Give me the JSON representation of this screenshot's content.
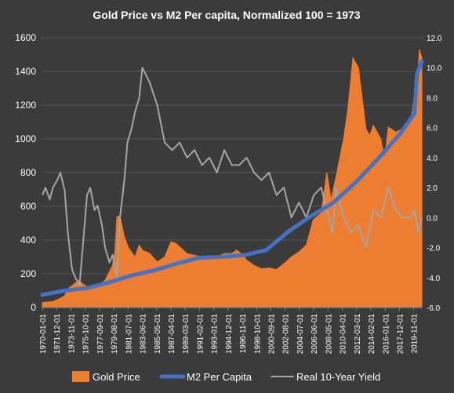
{
  "chart_data": {
    "type": "area",
    "title": "Gold Price vs M2 Per capita, Normalized 100 = 1973",
    "xlabel": "",
    "ylabel": "",
    "y_left_lim": [
      0,
      1600
    ],
    "y_left_ticks": [
      "0",
      "200",
      "400",
      "600",
      "800",
      "1000",
      "1200",
      "1400",
      "1600"
    ],
    "y_right_lim": [
      -6.0,
      12.0
    ],
    "y_right_ticks": [
      "-6.0",
      "-4.0",
      "-2.0",
      "0.0",
      "2.0",
      "4.0",
      "6.0",
      "8.0",
      "10.0",
      "12.0"
    ],
    "x_range": [
      "1970-01",
      "2020-12"
    ],
    "x_tick_labels": [
      "1970-01-01",
      "1971-12-01",
      "1973-11-01",
      "1975-10-01",
      "1977-09-01",
      "1979-08-01",
      "1981-07-01",
      "1983-06-01",
      "1985-05-01",
      "1987-04-01",
      "1989-03-01",
      "1991-02-01",
      "1993-01-01",
      "1994-12-01",
      "1996-11-01",
      "1998-10-01",
      "2000-09-01",
      "2002-08-01",
      "2004-07-01",
      "2006-06-01",
      "2008-05-01",
      "2010-04-01",
      "2012-03-01",
      "2014-02-01",
      "2016-01-01",
      "2017-12-01",
      "2019-11-01"
    ],
    "grid": true,
    "legend_position": "bottom",
    "colors": {
      "gold": "#ed7d31",
      "m2": "#4472c4",
      "yield": "#a5a5a5",
      "background": "#3b3b3b",
      "grid": "#555555"
    },
    "series": [
      {
        "name": "Gold Price",
        "axis": "left",
        "type": "area",
        "x": [
          "1970-01",
          "1971-06",
          "1972-06",
          "1973-01",
          "1973-06",
          "1974-06",
          "1974-12",
          "1975-06",
          "1976-06",
          "1977-06",
          "1978-06",
          "1979-06",
          "1979-10",
          "1980-01",
          "1980-06",
          "1981-01",
          "1981-07",
          "1982-06",
          "1983-01",
          "1983-06",
          "1984-06",
          "1985-06",
          "1986-06",
          "1987-04",
          "1987-12",
          "1988-06",
          "1989-06",
          "1990-06",
          "1991-06",
          "1992-06",
          "1993-06",
          "1994-06",
          "1995-06",
          "1996-02",
          "1996-12",
          "1997-06",
          "1998-06",
          "1999-06",
          "2000-06",
          "2001-06",
          "2002-06",
          "2003-06",
          "2004-06",
          "2005-06",
          "2006-05",
          "2007-06",
          "2008-03",
          "2008-10",
          "2009-06",
          "2010-06",
          "2011-01",
          "2011-09",
          "2012-06",
          "2013-06",
          "2013-12",
          "2014-06",
          "2015-06",
          "2015-12",
          "2016-06",
          "2017-06",
          "2018-06",
          "2019-06",
          "2019-12",
          "2020-03",
          "2020-08",
          "2020-12"
        ],
        "values": [
          30,
          35,
          55,
          70,
          110,
          145,
          160,
          140,
          110,
          130,
          160,
          250,
          340,
          540,
          540,
          420,
          360,
          300,
          370,
          340,
          320,
          270,
          300,
          390,
          380,
          360,
          320,
          310,
          300,
          290,
          300,
          320,
          320,
          340,
          310,
          280,
          250,
          230,
          235,
          225,
          260,
          300,
          330,
          370,
          520,
          560,
          800,
          640,
          780,
          1000,
          1180,
          1480,
          1420,
          1060,
          1020,
          1080,
          1000,
          880,
          1070,
          1040,
          1060,
          1100,
          1250,
          1200,
          1530,
          1480
        ]
      },
      {
        "name": "M2 Per Capita",
        "axis": "left",
        "type": "line",
        "x": [
          "1970-01",
          "1973-01",
          "1976-01",
          "1979-01",
          "1982-01",
          "1985-01",
          "1988-01",
          "1991-01",
          "1994-01",
          "1997-01",
          "2000-01",
          "2003-01",
          "2006-01",
          "2009-01",
          "2012-01",
          "2015-01",
          "2018-01",
          "2019-12",
          "2020-04",
          "2020-12"
        ],
        "values": [
          75,
          100,
          115,
          150,
          190,
          220,
          260,
          295,
          300,
          310,
          340,
          450,
          540,
          620,
          740,
          880,
          1030,
          1150,
          1380,
          1460
        ]
      },
      {
        "name": "Real 10-Year Yield",
        "axis": "right",
        "type": "line",
        "x": [
          "1970-01",
          "1970-06",
          "1971-01",
          "1971-06",
          "1972-01",
          "1972-06",
          "1973-01",
          "1973-06",
          "1974-01",
          "1974-06",
          "1975-01",
          "1975-06",
          "1976-01",
          "1976-06",
          "1977-01",
          "1977-06",
          "1978-01",
          "1978-06",
          "1979-01",
          "1979-06",
          "1980-01",
          "1980-06",
          "1981-01",
          "1981-06",
          "1982-01",
          "1982-06",
          "1983-01",
          "1983-06",
          "1984-06",
          "1985-06",
          "1986-06",
          "1987-06",
          "1988-06",
          "1989-06",
          "1990-06",
          "1991-06",
          "1992-06",
          "1993-06",
          "1994-06",
          "1995-06",
          "1996-06",
          "1997-06",
          "1998-06",
          "1999-06",
          "2000-06",
          "2001-06",
          "2002-06",
          "2003-06",
          "2004-06",
          "2005-06",
          "2006-06",
          "2007-06",
          "2008-06",
          "2008-12",
          "2009-06",
          "2010-06",
          "2011-06",
          "2012-06",
          "2013-06",
          "2014-06",
          "2015-06",
          "2016-06",
          "2017-06",
          "2018-06",
          "2019-06",
          "2019-12",
          "2020-06",
          "2020-12"
        ],
        "values": [
          1.5,
          2.0,
          1.2,
          2.0,
          2.5,
          3.0,
          1.8,
          -1.0,
          -3.5,
          -4.0,
          -4.5,
          -2.0,
          1.5,
          2.0,
          0.5,
          0.8,
          -0.5,
          -2.0,
          -3.0,
          -2.5,
          -4.0,
          0.0,
          2.5,
          5.0,
          6.0,
          7.0,
          8.0,
          10.0,
          9.0,
          7.5,
          5.0,
          4.5,
          5.0,
          4.0,
          4.5,
          3.5,
          4.0,
          3.0,
          4.5,
          3.5,
          3.5,
          4.0,
          3.0,
          2.5,
          3.0,
          1.5,
          2.0,
          0.0,
          1.0,
          0.0,
          1.5,
          2.0,
          0.0,
          -1.0,
          2.0,
          0.0,
          -1.0,
          -0.5,
          -2.0,
          0.5,
          0.0,
          2.0,
          0.5,
          0.0,
          0.0,
          0.5,
          -1.0,
          0.0
        ]
      }
    ]
  }
}
